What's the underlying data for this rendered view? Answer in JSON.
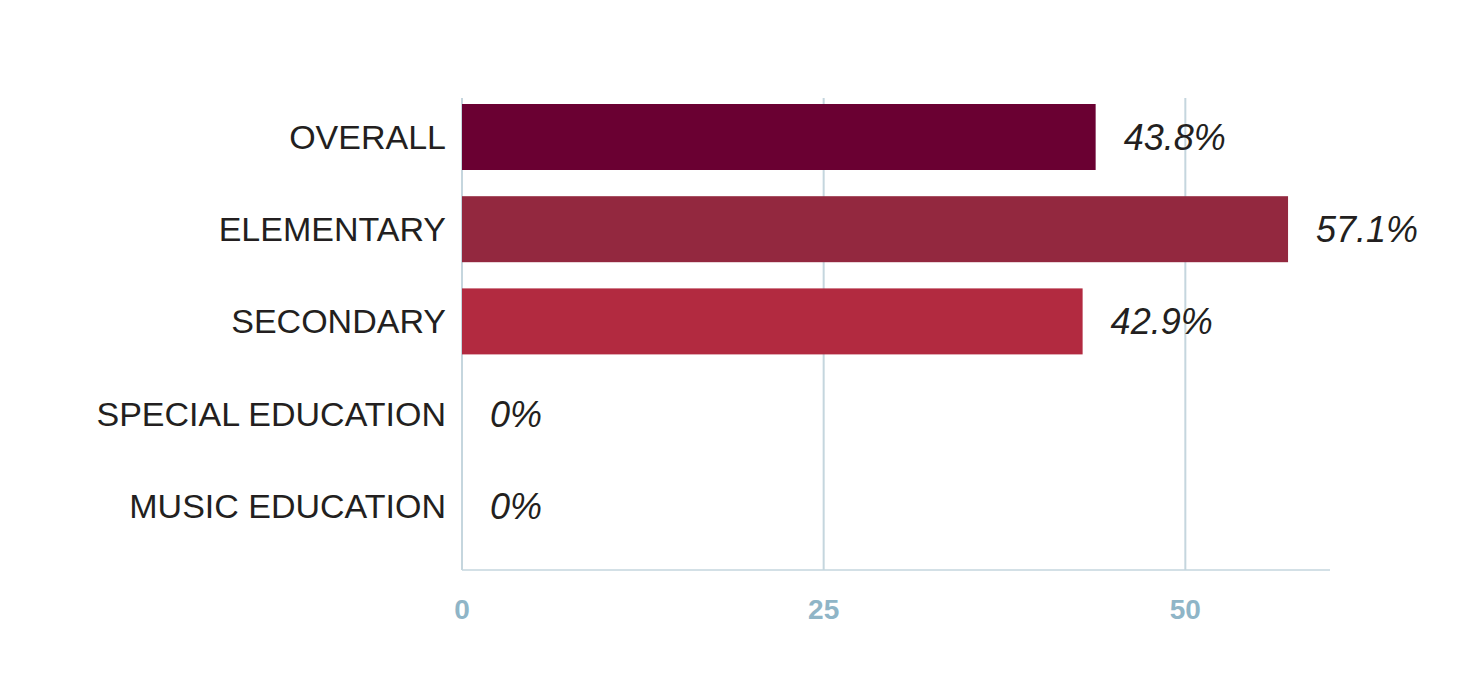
{
  "chart_data": {
    "type": "bar",
    "orientation": "horizontal",
    "categories": [
      "OVERALL",
      "ELEMENTARY",
      "SECONDARY",
      "SPECIAL EDUCATION",
      "MUSIC EDUCATION"
    ],
    "values": [
      43.8,
      57.1,
      42.9,
      0,
      0
    ],
    "value_labels": [
      "43.8%",
      "57.1%",
      "42.9%",
      "0%",
      "0%"
    ],
    "colors": [
      "#6a0032",
      "#93283f",
      "#b22a40",
      "#b22a40",
      "#b22a40"
    ],
    "xlim": [
      0,
      60
    ],
    "xticks": [
      0,
      25,
      50
    ],
    "grid": true,
    "data_labels": true
  }
}
